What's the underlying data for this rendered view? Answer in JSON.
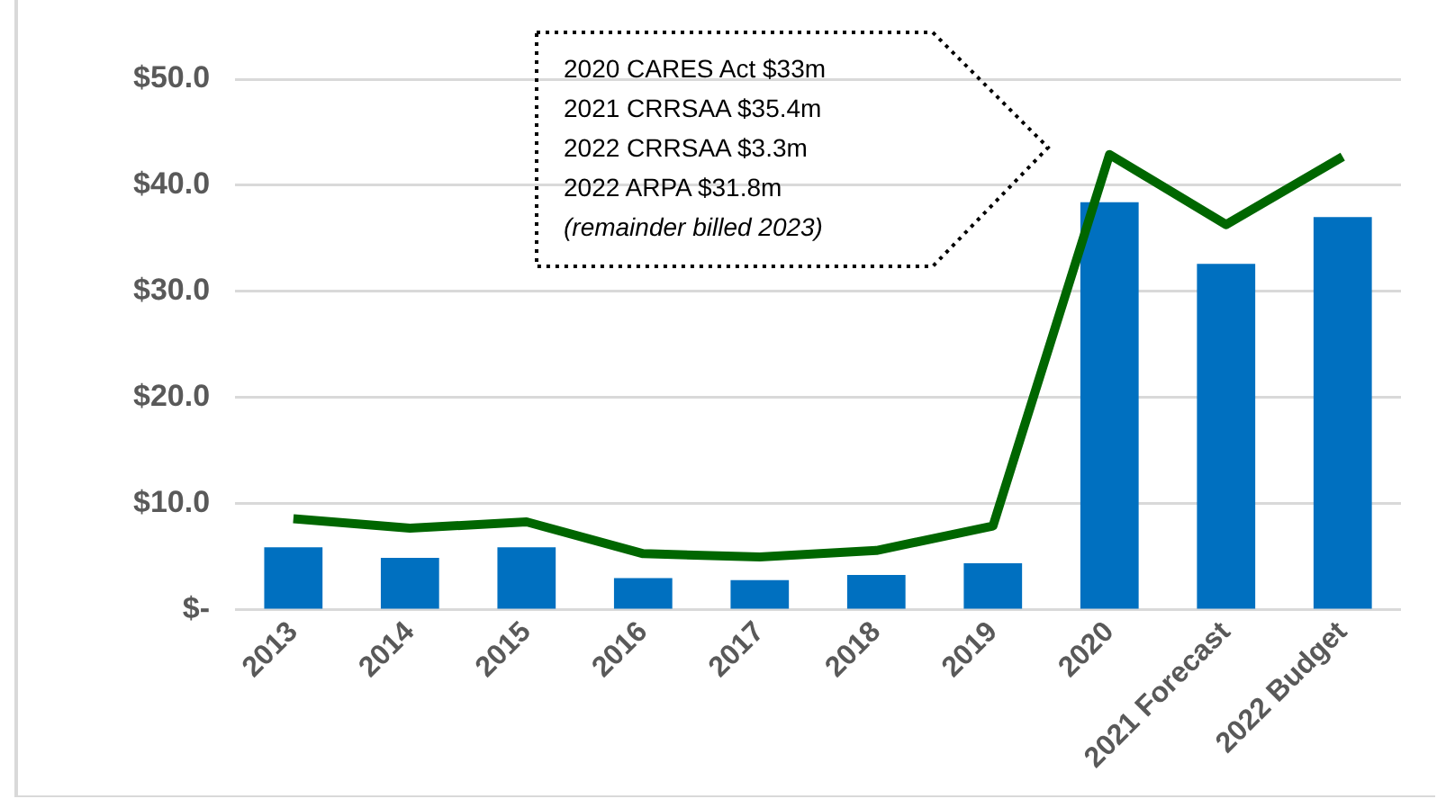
{
  "chart_data": {
    "type": "bar",
    "categories": [
      "2013",
      "2014",
      "2015",
      "2016",
      "2017",
      "2018",
      "2019",
      "2020",
      "2021 Forecast",
      "2022 Budget"
    ],
    "series": [
      {
        "color": "#0070c0",
        "values": [
          5.9,
          4.9,
          5.9,
          3.0,
          2.8,
          3.3,
          4.4,
          38.4,
          32.6,
          37.0
        ]
      },
      {
        "type": "line",
        "color": "#006600",
        "values": [
          8.6,
          7.7,
          8.3,
          5.3,
          5.0,
          5.6,
          7.9,
          42.9,
          36.3,
          42.7
        ]
      }
    ],
    "ylim": [
      0,
      50
    ],
    "yticks": [
      {
        "value": 0,
        "label": "$-"
      },
      {
        "value": 10,
        "label": "$10.0"
      },
      {
        "value": 20,
        "label": "$20.0"
      },
      {
        "value": 30,
        "label": "$30.0"
      },
      {
        "value": 40,
        "label": "$40.0"
      },
      {
        "value": 50,
        "label": "$50.0"
      }
    ],
    "grid": "y",
    "legend": false,
    "marker": "none",
    "line_style": "solid",
    "annotations": [
      "2020 CARES Act $33m",
      "2021 CRRSAA $35.4m",
      "2022 CRRSAA $3.3m",
      "2022 ARPA $31.8m",
      "(remainder billed 2023)"
    ]
  }
}
